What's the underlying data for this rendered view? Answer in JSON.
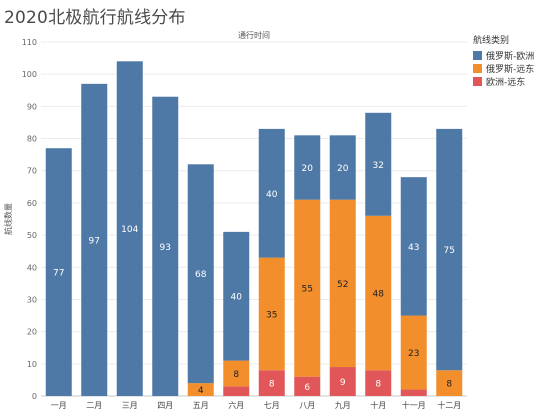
{
  "title": "2020北极航行航线分布",
  "chart_data": {
    "type": "bar",
    "stacked": true,
    "title": "2020北极航行航线分布",
    "xlabel": "通行时间",
    "ylabel": "航线数量",
    "ylim": [
      0,
      110
    ],
    "yticks": [
      0,
      10,
      20,
      30,
      40,
      50,
      60,
      70,
      80,
      90,
      100,
      110
    ],
    "categories": [
      "一月",
      "二月",
      "三月",
      "四月",
      "五月",
      "六月",
      "七月",
      "八月",
      "九月",
      "十月",
      "十一月",
      "十二月"
    ],
    "series": [
      {
        "name": "欧洲-远东",
        "color": "#e15759",
        "values": [
          0,
          0,
          0,
          0,
          0,
          3,
          8,
          6,
          9,
          8,
          2,
          0
        ],
        "labels": [
          "",
          "",
          "",
          "",
          "",
          "",
          "8",
          "6",
          "9",
          "8",
          "",
          ""
        ]
      },
      {
        "name": "俄罗斯-远东",
        "color": "#f28e2b",
        "values": [
          0,
          0,
          0,
          0,
          4,
          8,
          35,
          55,
          52,
          48,
          23,
          8
        ],
        "labels": [
          "",
          "",
          "",
          "",
          "4",
          "8",
          "35",
          "55",
          "52",
          "48",
          "23",
          "8"
        ]
      },
      {
        "name": "俄罗斯-欧洲",
        "color": "#4e79a7",
        "values": [
          77,
          97,
          104,
          93,
          68,
          40,
          40,
          20,
          20,
          32,
          43,
          75
        ],
        "labels": [
          "77",
          "97",
          "104",
          "93",
          "68",
          "40",
          "40",
          "20",
          "20",
          "32",
          "43",
          "75"
        ]
      }
    ],
    "legend": {
      "title": "航线类别",
      "position": "top-right",
      "entries": [
        {
          "label": "俄罗斯-欧洲",
          "color": "#4e79a7"
        },
        {
          "label": "俄罗斯-远东",
          "color": "#f28e2b"
        },
        {
          "label": "欧洲-远东",
          "color": "#e15759"
        }
      ]
    },
    "grid": true
  }
}
